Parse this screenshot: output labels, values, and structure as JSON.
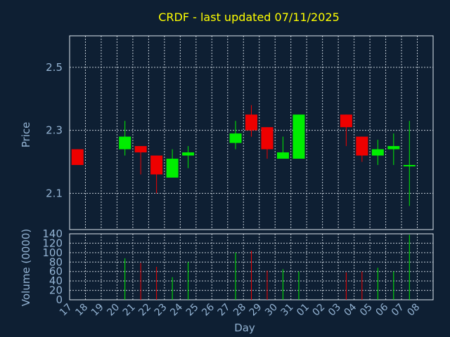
{
  "chart_data": {
    "type": "candlestick",
    "title": "CRDF - last updated 07/11/2025",
    "xlabel": "Day",
    "price_panel": {
      "ylabel": "Price",
      "ylim": [
        1.985,
        2.6
      ],
      "yticks": [
        "2.1",
        "2.3",
        "2.5"
      ],
      "grid": true
    },
    "volume_panel": {
      "ylabel": "Volume (0000)",
      "ylim": [
        0,
        140
      ],
      "yticks": [
        "0",
        "20",
        "40",
        "60",
        "80",
        "100",
        "120",
        "140"
      ],
      "grid": true
    },
    "x_ticks": [
      "17",
      "18",
      "19",
      "20",
      "21",
      "22",
      "23",
      "24",
      "25",
      "26",
      "27",
      "28",
      "29",
      "30",
      "31",
      "01",
      "02",
      "03",
      "04",
      "05",
      "06",
      "07",
      "08"
    ],
    "colors": {
      "up": "#00ee00",
      "down": "#ee0000",
      "background": "#0e1f33",
      "title": "#ffff00",
      "axis_text": "#93b3d3"
    },
    "candles": [
      {
        "day": "17",
        "open": 2.24,
        "high": 2.24,
        "low": 2.19,
        "close": 2.19,
        "volume": 0
      },
      {
        "day": "20",
        "open": 2.24,
        "high": 2.33,
        "low": 2.22,
        "close": 2.28,
        "volume": 88
      },
      {
        "day": "21",
        "open": 2.25,
        "high": 2.25,
        "low": 2.16,
        "close": 2.23,
        "volume": 78
      },
      {
        "day": "22",
        "open": 2.22,
        "high": 2.22,
        "low": 2.1,
        "close": 2.16,
        "volume": 70
      },
      {
        "day": "23",
        "open": 2.15,
        "high": 2.24,
        "low": 2.15,
        "close": 2.21,
        "volume": 48
      },
      {
        "day": "24",
        "open": 2.22,
        "high": 2.25,
        "low": 2.18,
        "close": 2.23,
        "volume": 80
      },
      {
        "day": "27",
        "open": 2.26,
        "high": 2.33,
        "low": 2.24,
        "close": 2.29,
        "volume": 100
      },
      {
        "day": "28",
        "open": 2.35,
        "high": 2.38,
        "low": 2.28,
        "close": 2.3,
        "volume": 104
      },
      {
        "day": "29",
        "open": 2.31,
        "high": 2.31,
        "low": 2.21,
        "close": 2.24,
        "volume": 62
      },
      {
        "day": "30",
        "open": 2.21,
        "high": 2.28,
        "low": 2.21,
        "close": 2.23,
        "volume": 65
      },
      {
        "day": "31",
        "open": 2.21,
        "high": 2.35,
        "low": 2.21,
        "close": 2.35,
        "volume": 60
      },
      {
        "day": "03",
        "open": 2.35,
        "high": 2.35,
        "low": 2.25,
        "close": 2.31,
        "volume": 58
      },
      {
        "day": "04",
        "open": 2.28,
        "high": 2.28,
        "low": 2.2,
        "close": 2.22,
        "volume": 60
      },
      {
        "day": "05",
        "open": 2.22,
        "high": 2.27,
        "low": 2.19,
        "close": 2.24,
        "volume": 68
      },
      {
        "day": "06",
        "open": 2.24,
        "high": 2.29,
        "low": 2.19,
        "close": 2.25,
        "volume": 60
      },
      {
        "day": "07",
        "open": 2.19,
        "high": 2.33,
        "low": 2.06,
        "close": 2.19,
        "volume": 138
      }
    ]
  }
}
